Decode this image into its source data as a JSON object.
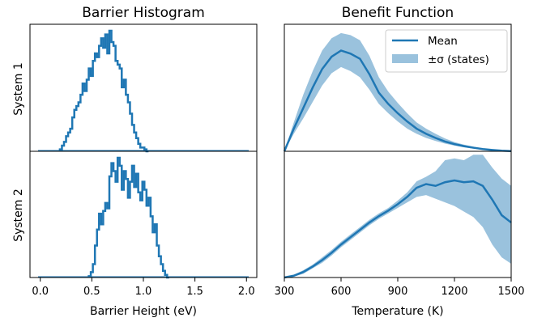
{
  "panels": {
    "left_title": "Barrier Histogram",
    "right_title": "Benefit Function",
    "row1_label": "System 1",
    "row2_label": "System 2"
  },
  "legend": {
    "mean_label": "Mean",
    "band_label": "±σ (states)"
  },
  "colors": {
    "line": "#1f77b4",
    "band": "#1f77b4"
  },
  "chart_data": [
    {
      "type": "histogram",
      "panel": "System 1 barrier histogram",
      "xlabel": "",
      "xlim": [
        -0.1,
        2.1
      ],
      "x": [
        0.2,
        0.22,
        0.24,
        0.26,
        0.28,
        0.3,
        0.32,
        0.34,
        0.36,
        0.38,
        0.4,
        0.42,
        0.44,
        0.46,
        0.48,
        0.5,
        0.52,
        0.54,
        0.56,
        0.58,
        0.6,
        0.62,
        0.64,
        0.66,
        0.68,
        0.7,
        0.72,
        0.74,
        0.76,
        0.78,
        0.8,
        0.82,
        0.84,
        0.86,
        0.88,
        0.9,
        0.92,
        0.94,
        0.96,
        0.98,
        1.0,
        1.02,
        1.04
      ],
      "counts": [
        1,
        3,
        5,
        8,
        10,
        12,
        18,
        22,
        24,
        26,
        30,
        36,
        32,
        38,
        44,
        40,
        48,
        52,
        50,
        56,
        60,
        55,
        62,
        52,
        64,
        58,
        56,
        48,
        46,
        44,
        34,
        38,
        30,
        26,
        20,
        14,
        10,
        7,
        4,
        2,
        2,
        1,
        0
      ]
    },
    {
      "type": "histogram",
      "panel": "System 2 barrier histogram",
      "xlabel": "Barrier Height (eV)",
      "xlim": [
        -0.1,
        2.1
      ],
      "xticks": [
        "0.0",
        "0.5",
        "1.0",
        "1.5",
        "2.0"
      ],
      "x": [
        0.48,
        0.5,
        0.52,
        0.54,
        0.56,
        0.58,
        0.6,
        0.62,
        0.64,
        0.66,
        0.68,
        0.7,
        0.72,
        0.74,
        0.76,
        0.78,
        0.8,
        0.82,
        0.84,
        0.86,
        0.88,
        0.9,
        0.92,
        0.94,
        0.96,
        0.98,
        1.0,
        1.02,
        1.04,
        1.06,
        1.08,
        1.1,
        1.12,
        1.14,
        1.16,
        1.18,
        1.2,
        1.22,
        1.24
      ],
      "counts": [
        1,
        4,
        10,
        24,
        36,
        48,
        40,
        50,
        56,
        52,
        76,
        86,
        80,
        72,
        90,
        84,
        66,
        80,
        74,
        60,
        72,
        84,
        68,
        78,
        64,
        58,
        72,
        66,
        54,
        60,
        46,
        34,
        40,
        24,
        16,
        10,
        5,
        2,
        0
      ]
    },
    {
      "type": "area",
      "panel": "System 1 benefit function",
      "xlim": [
        300,
        1500
      ],
      "x": [
        300,
        350,
        400,
        450,
        500,
        550,
        600,
        650,
        700,
        750,
        800,
        850,
        900,
        950,
        1000,
        1050,
        1100,
        1150,
        1200,
        1250,
        1300,
        1350,
        1400,
        1450,
        1500
      ],
      "series": [
        {
          "name": "Mean",
          "values": [
            0,
            0.22,
            0.42,
            0.62,
            0.8,
            0.92,
            0.98,
            0.95,
            0.9,
            0.75,
            0.57,
            0.46,
            0.37,
            0.29,
            0.22,
            0.17,
            0.13,
            0.095,
            0.07,
            0.05,
            0.035,
            0.022,
            0.013,
            0.006,
            0.002
          ]
        },
        {
          "name": "±σ (states)",
          "lower": [
            0,
            0.17,
            0.32,
            0.48,
            0.64,
            0.76,
            0.82,
            0.78,
            0.72,
            0.6,
            0.46,
            0.37,
            0.29,
            0.22,
            0.17,
            0.13,
            0.1,
            0.075,
            0.055,
            0.038,
            0.026,
            0.016,
            0.009,
            0.004,
            0.001
          ],
          "upper": [
            0,
            0.28,
            0.55,
            0.78,
            0.98,
            1.1,
            1.15,
            1.13,
            1.08,
            0.93,
            0.72,
            0.58,
            0.47,
            0.37,
            0.28,
            0.22,
            0.17,
            0.125,
            0.09,
            0.065,
            0.045,
            0.029,
            0.017,
            0.008,
            0.003
          ]
        }
      ]
    },
    {
      "type": "area",
      "panel": "System 2 benefit function",
      "xlabel": "Temperature  (K)",
      "xlim": [
        300,
        1500
      ],
      "xticks": [
        "300",
        "600",
        "900",
        "1200",
        "1500"
      ],
      "x": [
        300,
        350,
        400,
        450,
        500,
        550,
        600,
        650,
        700,
        750,
        800,
        850,
        900,
        950,
        1000,
        1050,
        1100,
        1150,
        1200,
        1250,
        1300,
        1350,
        1400,
        1450,
        1500
      ],
      "series": [
        {
          "name": "Mean",
          "values": [
            0,
            0.02,
            0.06,
            0.12,
            0.19,
            0.27,
            0.36,
            0.44,
            0.52,
            0.6,
            0.67,
            0.73,
            0.8,
            0.88,
            0.98,
            1.02,
            1.0,
            1.04,
            1.06,
            1.04,
            1.05,
            1.0,
            0.85,
            0.68,
            0.6
          ]
        },
        {
          "name": "±σ (states)",
          "lower": [
            0,
            0.01,
            0.04,
            0.1,
            0.16,
            0.24,
            0.33,
            0.41,
            0.49,
            0.57,
            0.64,
            0.7,
            0.76,
            0.82,
            0.88,
            0.9,
            0.86,
            0.82,
            0.78,
            0.72,
            0.66,
            0.55,
            0.36,
            0.22,
            0.15
          ],
          "upper": [
            0,
            0.03,
            0.08,
            0.14,
            0.22,
            0.3,
            0.39,
            0.47,
            0.55,
            0.63,
            0.7,
            0.76,
            0.84,
            0.93,
            1.05,
            1.1,
            1.16,
            1.28,
            1.3,
            1.28,
            1.34,
            1.34,
            1.2,
            1.08,
            1.0
          ]
        }
      ]
    }
  ]
}
